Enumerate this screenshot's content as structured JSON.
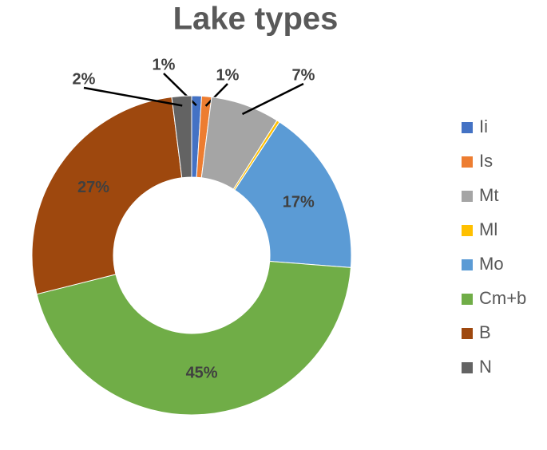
{
  "chart_data": {
    "type": "pie",
    "title": "Lake types",
    "categories": [
      "Ii",
      "Is",
      "Mt",
      "Ml",
      "Mo",
      "Cm+b",
      "B",
      "N"
    ],
    "values": [
      1,
      1,
      7,
      0.3,
      17,
      45,
      27,
      2
    ],
    "value_labels": [
      "1%",
      "1%",
      "7%",
      null,
      "17%",
      "45%",
      "27%",
      "2%"
    ],
    "colors": [
      "#4472c4",
      "#ed7d31",
      "#a5a5a5",
      "#ffc000",
      "#5b9bd5",
      "#70ad47",
      "#9e480e",
      "#636363"
    ],
    "legend": "right"
  }
}
